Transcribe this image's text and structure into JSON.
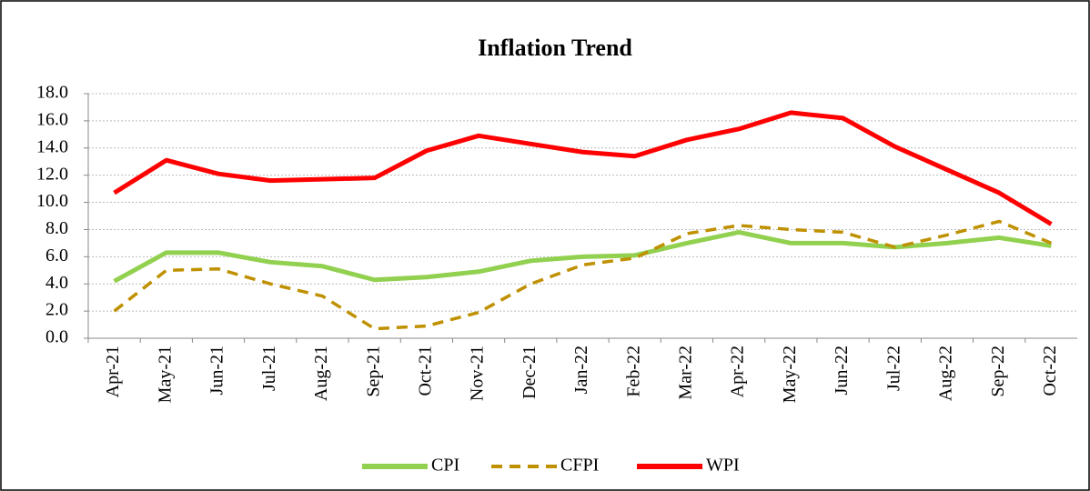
{
  "chart_data": {
    "type": "line",
    "title": "Inflation Trend",
    "categories": [
      "Apr-21",
      "May-21",
      "Jun-21",
      "Jul-21",
      "Aug-21",
      "Sep-21",
      "Oct-21",
      "Nov-21",
      "Dec-21",
      "Jan-22",
      "Feb-22",
      "Mar-22",
      "Apr-22",
      "May-22",
      "Jun-22",
      "Jul-22",
      "Aug-22",
      "Sep-22",
      "Oct-22"
    ],
    "series": [
      {
        "name": "CPI",
        "color": "#92d050",
        "line_style": "solid",
        "values": [
          4.2,
          6.3,
          6.3,
          5.6,
          5.3,
          4.3,
          4.5,
          4.9,
          5.7,
          6.0,
          6.1,
          7.0,
          7.8,
          7.0,
          7.0,
          6.7,
          7.0,
          7.4,
          6.8
        ]
      },
      {
        "name": "CFPI",
        "color": "#bf9000",
        "line_style": "dashed",
        "values": [
          2.0,
          5.0,
          5.1,
          4.0,
          3.1,
          0.7,
          0.9,
          1.9,
          4.0,
          5.4,
          5.9,
          7.7,
          8.3,
          8.0,
          7.8,
          6.7,
          7.6,
          8.6,
          7.0
        ]
      },
      {
        "name": "WPI",
        "color": "#ff0000",
        "line_style": "solid",
        "values": [
          10.7,
          13.1,
          12.1,
          11.6,
          11.7,
          11.8,
          13.8,
          14.9,
          14.3,
          13.7,
          13.4,
          14.6,
          15.4,
          16.6,
          16.2,
          14.1,
          12.4,
          10.7,
          8.4
        ]
      }
    ],
    "ylim": [
      0,
      18
    ],
    "yticks": [
      {
        "value": 0,
        "label": "0.0"
      },
      {
        "value": 2,
        "label": "2.0"
      },
      {
        "value": 4,
        "label": "4.0"
      },
      {
        "value": 6,
        "label": "6.0"
      },
      {
        "value": 8,
        "label": "8.0"
      },
      {
        "value": 10,
        "label": "10.0"
      },
      {
        "value": 12,
        "label": "12.0"
      },
      {
        "value": 14,
        "label": "14.0"
      },
      {
        "value": 16,
        "label": "16.0"
      },
      {
        "value": 18,
        "label": "18.0"
      }
    ],
    "grid": true
  }
}
